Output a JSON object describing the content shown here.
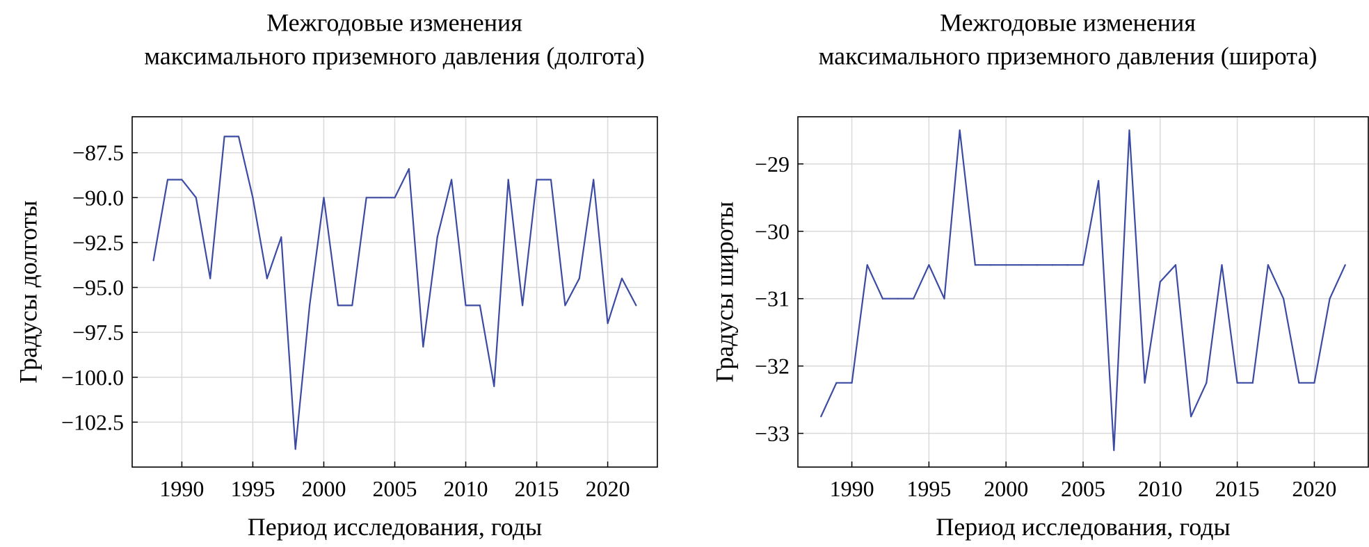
{
  "chart_data": [
    {
      "type": "line",
      "title_lines": [
        "Межгодовые изменения",
        "максимального приземного давления (долгота)"
      ],
      "xlabel": "Период исследования, годы",
      "ylabel": "Градусы долготы",
      "xlim": [
        1986.5,
        2023.5
      ],
      "ylim": [
        -105.0,
        -85.5
      ],
      "xticks": [
        1990,
        1995,
        2000,
        2005,
        2010,
        2015,
        2020
      ],
      "xtick_labels": [
        "1990",
        "1995",
        "2000",
        "2005",
        "2010",
        "2015",
        "2020"
      ],
      "yticks": [
        -87.5,
        -90.0,
        -92.5,
        -95.0,
        -97.5,
        -100.0,
        -102.5
      ],
      "ytick_labels": [
        "−87.5",
        "−90.0",
        "−92.5",
        "−95.0",
        "−97.5",
        "−100.0",
        "−102.5"
      ],
      "grid": true,
      "color": "#3b4aa3",
      "series": [
        {
          "x": [
            1988,
            1989,
            1990,
            1991,
            1992,
            1993,
            1994,
            1995,
            1996,
            1997,
            1998,
            1999,
            2000,
            2001,
            2002,
            2003,
            2004,
            2005,
            2006,
            2007,
            2008,
            2009,
            2010,
            2011,
            2012,
            2013,
            2014,
            2015,
            2016,
            2017,
            2018,
            2019,
            2020,
            2021,
            2022
          ],
          "values": [
            -93.5,
            -89.0,
            -89.0,
            -90.0,
            -94.5,
            -86.6,
            -86.6,
            -90.0,
            -94.5,
            -92.2,
            -104.0,
            -96.0,
            -90.0,
            -96.0,
            -96.0,
            -90.0,
            -90.0,
            -90.0,
            -88.4,
            -98.3,
            -92.2,
            -89.0,
            -96.0,
            -96.0,
            -100.5,
            -89.0,
            -96.0,
            -89.0,
            -89.0,
            -96.0,
            -94.5,
            -89.0,
            -97.0,
            -94.5,
            -96.0
          ]
        }
      ]
    },
    {
      "type": "line",
      "title_lines": [
        "Межгодовые изменения",
        "максимального приземного давления (широта)"
      ],
      "xlabel": "Период исследования, годы",
      "ylabel": "Градусы широты",
      "xlim": [
        1986.5,
        2023.5
      ],
      "ylim": [
        -33.5,
        -28.3
      ],
      "xticks": [
        1990,
        1995,
        2000,
        2005,
        2010,
        2015,
        2020
      ],
      "xtick_labels": [
        "1990",
        "1995",
        "2000",
        "2005",
        "2010",
        "2015",
        "2020"
      ],
      "yticks": [
        -29,
        -30,
        -31,
        -32,
        -33
      ],
      "ytick_labels": [
        "−29",
        "−30",
        "−31",
        "−32",
        "−33"
      ],
      "grid": true,
      "color": "#3b4aa3",
      "series": [
        {
          "x": [
            1988,
            1989,
            1990,
            1991,
            1992,
            1993,
            1994,
            1995,
            1996,
            1997,
            1998,
            1999,
            2000,
            2001,
            2002,
            2003,
            2004,
            2005,
            2006,
            2007,
            2008,
            2009,
            2010,
            2011,
            2012,
            2013,
            2014,
            2015,
            2016,
            2017,
            2018,
            2019,
            2020,
            2021,
            2022
          ],
          "values": [
            -32.75,
            -32.25,
            -32.25,
            -30.5,
            -31.0,
            -31.0,
            -31.0,
            -30.5,
            -31.0,
            -28.5,
            -30.5,
            -30.5,
            -30.5,
            -30.5,
            -30.5,
            -30.5,
            -30.5,
            -30.5,
            -29.25,
            -33.25,
            -28.5,
            -32.25,
            -30.75,
            -30.5,
            -32.75,
            -32.25,
            -30.5,
            -32.25,
            -32.25,
            -30.5,
            -31.0,
            -32.25,
            -32.25,
            -31.0,
            -30.5
          ]
        }
      ]
    }
  ]
}
